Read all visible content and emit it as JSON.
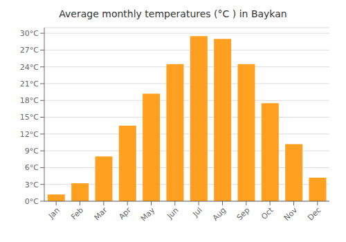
{
  "chart_data": {
    "type": "bar",
    "title": "Average monthly temperatures (°C ) in Baykan",
    "categories": [
      "Jan",
      "Feb",
      "Mar",
      "Apr",
      "May",
      "Jun",
      "Jul",
      "Aug",
      "Sep",
      "Oct",
      "Nov",
      "Dec"
    ],
    "values": [
      1.2,
      3.2,
      8.0,
      13.5,
      19.2,
      24.5,
      29.5,
      29.0,
      24.5,
      17.5,
      10.2,
      4.2
    ],
    "color": "#FFA020",
    "ylim": [
      0,
      31
    ],
    "yticks": [
      {
        "value": 0,
        "label": "0°C"
      },
      {
        "value": 3,
        "label": "3°C"
      },
      {
        "value": 6,
        "label": "6°C"
      },
      {
        "value": 9,
        "label": "9°C"
      },
      {
        "value": 12,
        "label": "12°C"
      },
      {
        "value": 15,
        "label": "15°C"
      },
      {
        "value": 18,
        "label": "18°C"
      },
      {
        "value": 21,
        "label": "21°C"
      },
      {
        "value": 24,
        "label": "24°C"
      },
      {
        "value": 27,
        "label": "27°C"
      },
      {
        "value": 30,
        "label": "30°C"
      }
    ],
    "grid": true
  }
}
